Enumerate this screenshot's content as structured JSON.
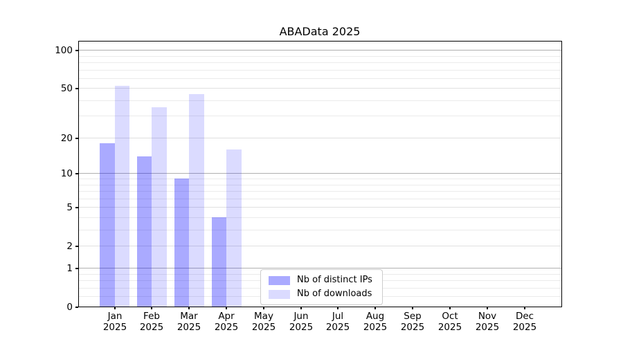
{
  "chart_data": {
    "type": "bar",
    "title": "ABAData 2025",
    "yscale": "log1p",
    "ylim": [
      0,
      117
    ],
    "grid": "horizontal",
    "y_ticks": [
      0,
      1,
      2,
      5,
      10,
      20,
      50,
      100
    ],
    "y_major_gridlines": [
      1,
      10,
      100
    ],
    "y_minor_gridlines": [
      0.2,
      0.4,
      0.6,
      0.8,
      3,
      4,
      6,
      7,
      8,
      9,
      30,
      40,
      60,
      70,
      80,
      90
    ],
    "x_categories": [
      "Jan",
      "Feb",
      "Mar",
      "Apr",
      "May",
      "Jun",
      "Jul",
      "Aug",
      "Sep",
      "Oct",
      "Nov",
      "Dec"
    ],
    "x_year": "2025",
    "series": [
      {
        "name": "Nb of distinct IPs",
        "perceived_color": "#aaaaf4",
        "fill": "rgba(0,0,255,0.335)",
        "values": [
          18,
          14,
          9,
          4,
          0,
          0,
          0,
          0,
          0,
          0,
          0,
          0
        ]
      },
      {
        "name": "Nb of downloads",
        "perceived_color": "#dcdcfa",
        "fill": "rgba(0,0,255,0.14)",
        "values": [
          52,
          35,
          45,
          16,
          0,
          0,
          0,
          0,
          0,
          0,
          0,
          0
        ]
      }
    ],
    "legend_position": "lower center (inside plot)"
  },
  "colors": {
    "background": "#ffffff",
    "spine": "#000000",
    "grid_major": "#b0b0b0",
    "grid_labeled": "#e0e0e0",
    "grid_minor": "#ebebeb",
    "text": "#000000",
    "legend_border": "#cccccc"
  }
}
